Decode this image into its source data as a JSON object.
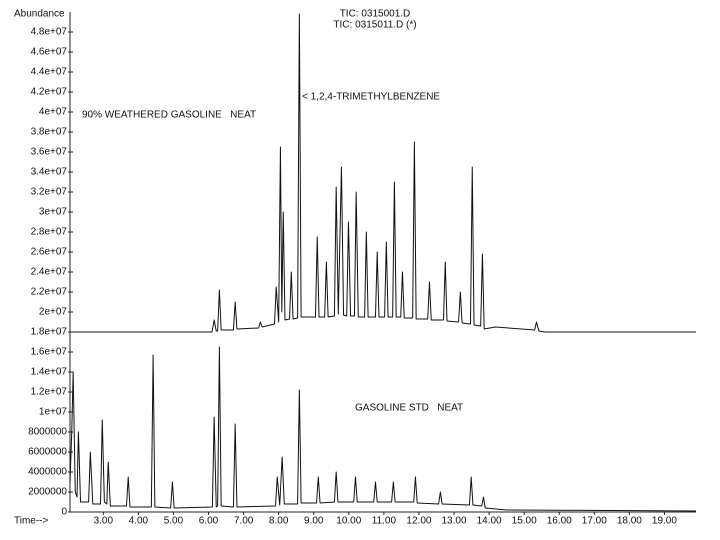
{
  "chart_data": {
    "type": "line",
    "y_label": "Abundance",
    "x_label": "Time-->",
    "annotations": [
      "90% WEATHERED GASOLINE   NEAT",
      "< 1,2,4-TRIMETHYLBENZENE",
      "GASOLINE STD   NEAT"
    ],
    "xlim": [
      2.05,
      19.9
    ],
    "ylim": [
      0,
      50000000
    ],
    "grid": false,
    "xticks": [
      {
        "value": 3,
        "label": "3.00"
      },
      {
        "value": 4,
        "label": "4.00"
      },
      {
        "value": 5,
        "label": "5.00"
      },
      {
        "value": 6,
        "label": "6.00"
      },
      {
        "value": 7,
        "label": "7.00"
      },
      {
        "value": 8,
        "label": "8.00"
      },
      {
        "value": 9,
        "label": "9.00"
      },
      {
        "value": 10,
        "label": "10.00"
      },
      {
        "value": 11,
        "label": "11.00"
      },
      {
        "value": 12,
        "label": "12.00"
      },
      {
        "value": 13,
        "label": "13.00"
      },
      {
        "value": 14,
        "label": "14.00"
      },
      {
        "value": 15,
        "label": "15.00"
      },
      {
        "value": 16,
        "label": "16.00"
      },
      {
        "value": 17,
        "label": "17.00"
      },
      {
        "value": 18,
        "label": "18.00"
      },
      {
        "value": 19,
        "label": "19.00"
      }
    ],
    "yticks": [
      0,
      2000000,
      4000000,
      6000000,
      8000000,
      {
        "value": 10000000,
        "label": "1e+07"
      },
      {
        "value": 12000000,
        "label": "1.2e+07"
      },
      {
        "value": 14000000,
        "label": "1.4e+07"
      },
      {
        "value": 16000000,
        "label": "1.6e+07"
      },
      {
        "value": 18000000,
        "label": "1.8e+07"
      },
      {
        "value": 20000000,
        "label": "2e+07"
      },
      {
        "value": 22000000,
        "label": "2.2e+07"
      },
      {
        "value": 24000000,
        "label": "2.4e+07"
      },
      {
        "value": 26000000,
        "label": "2.6e+07"
      },
      {
        "value": 28000000,
        "label": "2.8e+07"
      },
      {
        "value": 30000000,
        "label": "3e+07"
      },
      {
        "value": 32000000,
        "label": "3.2e+07"
      },
      {
        "value": 34000000,
        "label": "3.4e+07"
      },
      {
        "value": 36000000,
        "label": "3.6e+07"
      },
      {
        "value": 38000000,
        "label": "3.8e+07"
      },
      {
        "value": 40000000,
        "label": "4e+07"
      },
      {
        "value": 42000000,
        "label": "4.2e+07"
      },
      {
        "value": 44000000,
        "label": "4.4e+07"
      },
      {
        "value": 46000000,
        "label": "4.6e+07"
      },
      {
        "value": 48000000,
        "label": "4.8e+07"
      }
    ],
    "series": [
      {
        "name": "TIC: 0315001.D",
        "color": "#111111",
        "x": [
          2.05,
          6.1,
          6.16,
          6.22,
          6.26,
          6.31,
          6.36,
          6.71,
          6.76,
          6.81,
          7.43,
          7.48,
          7.53,
          7.88,
          7.93,
          8.0,
          8.05,
          8.09,
          8.13,
          8.18,
          8.31,
          8.36,
          8.41,
          8.54,
          8.59,
          8.64,
          9.05,
          9.1,
          9.15,
          9.31,
          9.36,
          9.41,
          9.59,
          9.64,
          9.7,
          9.79,
          9.85,
          9.94,
          9.99,
          10.05,
          10.16,
          10.21,
          10.27,
          10.45,
          10.5,
          10.55,
          10.76,
          10.81,
          10.86,
          11.02,
          11.07,
          11.12,
          11.25,
          11.3,
          11.35,
          11.48,
          11.53,
          11.58,
          11.82,
          11.87,
          11.92,
          12.25,
          12.3,
          12.35,
          12.7,
          12.75,
          12.8,
          13.13,
          13.18,
          13.23,
          13.47,
          13.52,
          13.57,
          13.76,
          13.81,
          13.86,
          14.18,
          15.3,
          15.35,
          15.42,
          15.6,
          19.9
        ],
        "values": [
          18000000,
          18000000,
          19200000,
          18100000,
          18100000,
          22200000,
          18200000,
          18200000,
          21000000,
          18300000,
          18400000,
          19000000,
          18500000,
          18800000,
          22500000,
          19000000,
          36500000,
          20000000,
          30000000,
          19200000,
          19300000,
          24000000,
          19300000,
          19400000,
          49800000,
          19500000,
          19500000,
          27500000,
          19500000,
          19500000,
          25000000,
          19500000,
          19600000,
          32500000,
          19800000,
          34500000,
          19700000,
          19600000,
          29000000,
          19600000,
          19600000,
          32000000,
          19500000,
          19500000,
          28000000,
          19500000,
          19500000,
          26000000,
          19500000,
          19500000,
          27000000,
          19500000,
          19500000,
          33000000,
          19500000,
          19500000,
          24000000,
          19400000,
          19400000,
          37000000,
          19300000,
          19300000,
          23000000,
          19200000,
          19200000,
          25000000,
          19100000,
          19000000,
          22000000,
          18900000,
          18800000,
          34500000,
          18700000,
          18600000,
          25800000,
          18300000,
          18500000,
          18200000,
          19000000,
          18100000,
          18000000,
          18000000
        ]
      },
      {
        "name": "TIC: 0315011.D (*)",
        "color": "#111111",
        "x": [
          2.05,
          2.1,
          2.14,
          2.2,
          2.25,
          2.29,
          2.35,
          2.58,
          2.63,
          2.7,
          2.92,
          2.97,
          3.03,
          3.1,
          3.14,
          3.2,
          3.66,
          3.71,
          3.76,
          4.37,
          4.42,
          4.47,
          4.92,
          4.97,
          5.02,
          6.11,
          6.16,
          6.22,
          6.26,
          6.31,
          6.36,
          6.71,
          6.76,
          6.81,
          7.91,
          7.96,
          8.03,
          8.1,
          8.16,
          8.54,
          8.59,
          8.64,
          9.08,
          9.13,
          9.18,
          9.59,
          9.64,
          9.69,
          10.14,
          10.19,
          10.24,
          10.71,
          10.76,
          10.81,
          11.22,
          11.27,
          11.32,
          11.85,
          11.9,
          11.95,
          12.56,
          12.61,
          12.66,
          13.44,
          13.49,
          13.54,
          13.79,
          13.84,
          13.89,
          14.5,
          19.9
        ],
        "values": [
          3000000,
          8000000,
          14000000,
          2000000,
          1500000,
          8000000,
          1000000,
          1000000,
          6000000,
          800000,
          800000,
          9200000,
          1000000,
          800000,
          5000000,
          600000,
          600000,
          3500000,
          500000,
          500000,
          15700000,
          500000,
          400000,
          3000000,
          400000,
          500000,
          9500000,
          500000,
          600000,
          16500000,
          600000,
          500000,
          8800000,
          500000,
          600000,
          3500000,
          700000,
          5500000,
          800000,
          800000,
          12200000,
          900000,
          900000,
          3500000,
          900000,
          1000000,
          4000000,
          1000000,
          1000000,
          3500000,
          1000000,
          1000000,
          3000000,
          1000000,
          1000000,
          3000000,
          1000000,
          1000000,
          3500000,
          900000,
          800000,
          2000000,
          800000,
          700000,
          3500000,
          700000,
          600000,
          1500000,
          400000,
          200000,
          100000
        ]
      }
    ]
  }
}
